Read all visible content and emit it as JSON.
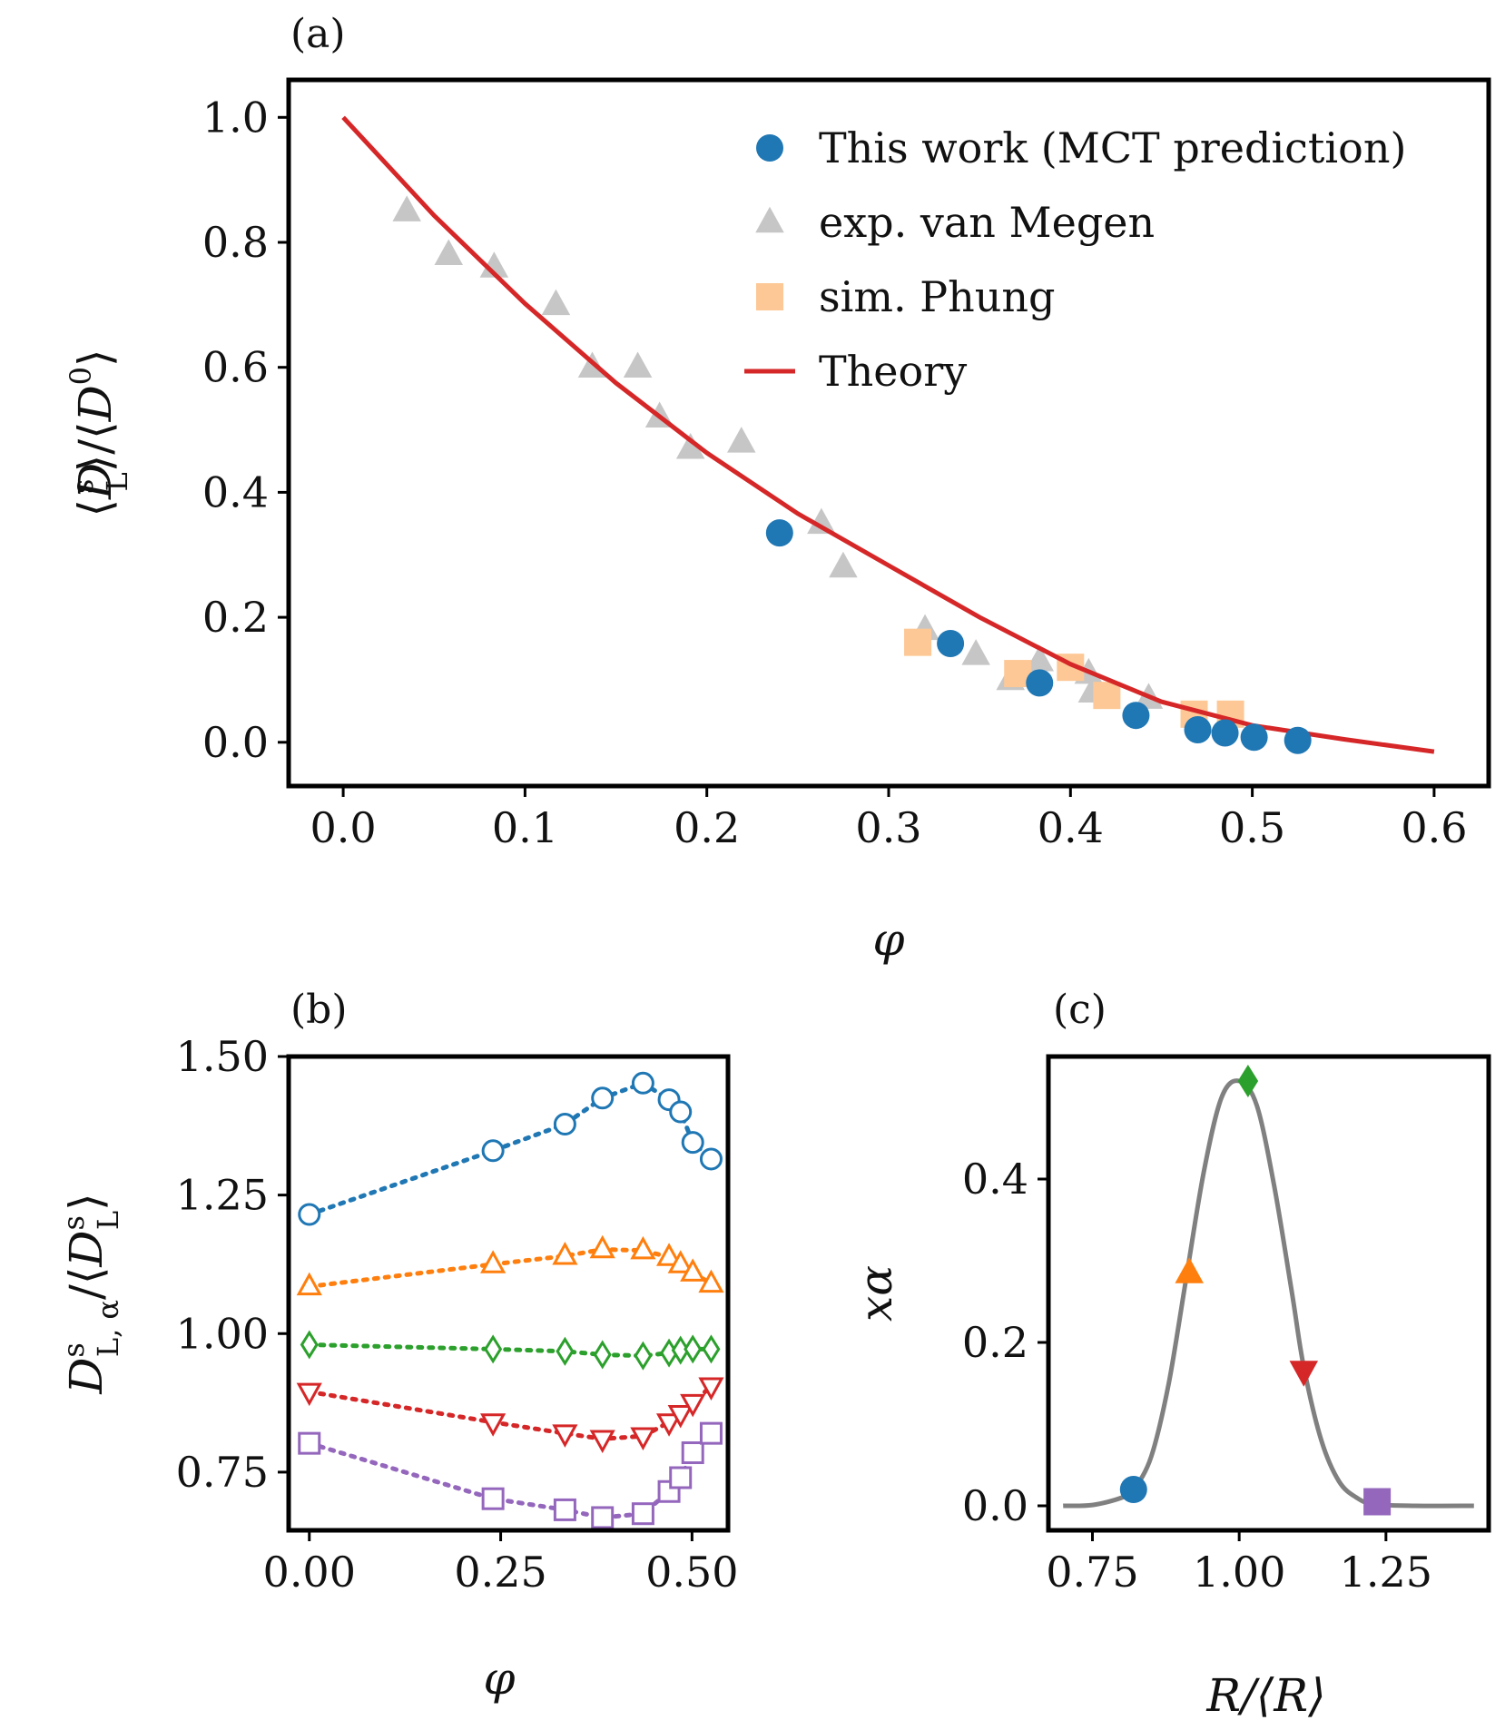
{
  "chart_data": [
    {
      "panel": "(a)",
      "type": "scatter",
      "xlabel": "φ",
      "ylabel_parts": {
        "open": "⟨",
        "sym": "D",
        "sup": "s",
        "sub": "L",
        "mid": "⟩/⟨",
        "sym2": "D",
        "sup2": "0",
        "close": "⟩"
      },
      "xlim": [
        -0.03,
        0.63
      ],
      "ylim": [
        -0.07,
        1.06
      ],
      "xticks": [
        "0.0",
        "0.1",
        "0.2",
        "0.3",
        "0.4",
        "0.5",
        "0.6"
      ],
      "yticks": [
        "0.0",
        "0.2",
        "0.4",
        "0.6",
        "0.8",
        "1.0"
      ],
      "legend_position": "top-right",
      "series": [
        {
          "name": "exp.  van Megen",
          "marker": "triangle",
          "color": "#c6c6c6",
          "points": [
            [
              0.035,
              0.85
            ],
            [
              0.058,
              0.78
            ],
            [
              0.083,
              0.76
            ],
            [
              0.117,
              0.7
            ],
            [
              0.137,
              0.6
            ],
            [
              0.162,
              0.6
            ],
            [
              0.174,
              0.52
            ],
            [
              0.191,
              0.47
            ],
            [
              0.219,
              0.48
            ],
            [
              0.263,
              0.35
            ],
            [
              0.275,
              0.28
            ],
            [
              0.32,
              0.18
            ],
            [
              0.348,
              0.14
            ],
            [
              0.367,
              0.1
            ],
            [
              0.383,
              0.13
            ],
            [
              0.41,
              0.11
            ],
            [
              0.412,
              0.08
            ],
            [
              0.443,
              0.07
            ]
          ]
        },
        {
          "name": "sim.  Phung",
          "marker": "square",
          "color": "#fdc895",
          "points": [
            [
              0.316,
              0.16
            ],
            [
              0.371,
              0.11
            ],
            [
              0.4,
              0.12
            ],
            [
              0.42,
              0.075
            ],
            [
              0.468,
              0.045
            ],
            [
              0.488,
              0.045
            ]
          ]
        },
        {
          "name": "Theory",
          "marker": "line",
          "color": "#d62728",
          "points": [
            [
              0.0,
              1.0
            ],
            [
              0.05,
              0.843
            ],
            [
              0.1,
              0.702
            ],
            [
              0.15,
              0.575
            ],
            [
              0.2,
              0.463
            ],
            [
              0.25,
              0.366
            ],
            [
              0.3,
              0.283
            ],
            [
              0.35,
              0.2
            ],
            [
              0.4,
              0.125
            ],
            [
              0.45,
              0.065
            ],
            [
              0.5,
              0.027
            ],
            [
              0.55,
              0.005
            ],
            [
              0.6,
              -0.015
            ]
          ]
        },
        {
          "name": "This work (MCT prediction)",
          "marker": "circle",
          "color": "#1f77b4",
          "points": [
            [
              0.24,
              0.335
            ],
            [
              0.334,
              0.158
            ],
            [
              0.383,
              0.095
            ],
            [
              0.436,
              0.043
            ],
            [
              0.47,
              0.02
            ],
            [
              0.485,
              0.015
            ],
            [
              0.501,
              0.008
            ],
            [
              0.525,
              0.003
            ]
          ]
        }
      ],
      "legend_order": [
        3,
        0,
        1,
        2
      ]
    },
    {
      "panel": "(b)",
      "type": "line",
      "xlabel": "φ",
      "ylabel_parts": {
        "sym": "D",
        "sup": "s",
        "sub": "L, α",
        "mid": "/⟨",
        "sym2": "D",
        "sup2": "s",
        "sub2": "L",
        "close": "⟩"
      },
      "xlim": [
        -0.027,
        0.547
      ],
      "ylim": [
        0.645,
        1.5
      ],
      "xticks": [
        "0.00",
        "0.25",
        "0.50"
      ],
      "yticks": [
        "0.75",
        "1.00",
        "1.25",
        "1.50"
      ],
      "x": [
        0.0,
        0.24,
        0.334,
        0.383,
        0.436,
        0.47,
        0.485,
        0.501,
        0.525
      ],
      "series": [
        {
          "marker": "circle",
          "color": "#1f77b4",
          "values": [
            1.215,
            1.33,
            1.378,
            1.425,
            1.452,
            1.422,
            1.4,
            1.345,
            1.315
          ]
        },
        {
          "marker": "triangle-up",
          "color": "#ff7f0e",
          "values": [
            1.085,
            1.125,
            1.14,
            1.152,
            1.15,
            1.138,
            1.125,
            1.11,
            1.09
          ]
        },
        {
          "marker": "diamond",
          "color": "#2ca02c",
          "values": [
            0.98,
            0.972,
            0.968,
            0.962,
            0.96,
            0.965,
            0.97,
            0.972,
            0.972
          ]
        },
        {
          "marker": "triangle-down",
          "color": "#d62728",
          "values": [
            0.895,
            0.84,
            0.82,
            0.81,
            0.815,
            0.84,
            0.855,
            0.875,
            0.905
          ]
        },
        {
          "marker": "square",
          "color": "#9467bd",
          "values": [
            0.802,
            0.702,
            0.682,
            0.668,
            0.675,
            0.715,
            0.74,
            0.785,
            0.82
          ]
        }
      ]
    },
    {
      "panel": "(c)",
      "type": "line",
      "xlabel": "R/⟨R⟩",
      "ylabel": "xα",
      "xlim": [
        0.675,
        1.425
      ],
      "ylim": [
        -0.03,
        0.55
      ],
      "xticks": [
        "0.75",
        "1.00",
        "1.25"
      ],
      "yticks": [
        "0.0",
        "0.2",
        "0.4"
      ],
      "curve": {
        "color": "#808080",
        "points": [
          [
            0.7,
            0.0
          ],
          [
            0.75,
            0.001
          ],
          [
            0.8,
            0.01
          ],
          [
            0.82,
            0.02
          ],
          [
            0.85,
            0.06
          ],
          [
            0.88,
            0.15
          ],
          [
            0.91,
            0.28
          ],
          [
            0.94,
            0.41
          ],
          [
            0.97,
            0.5
          ],
          [
            1.0,
            0.52
          ],
          [
            1.03,
            0.49
          ],
          [
            1.06,
            0.39
          ],
          [
            1.09,
            0.26
          ],
          [
            1.11,
            0.17
          ],
          [
            1.14,
            0.08
          ],
          [
            1.17,
            0.03
          ],
          [
            1.2,
            0.01
          ],
          [
            1.23,
            0.002
          ],
          [
            1.3,
            0.0
          ],
          [
            1.4,
            0.0
          ]
        ]
      },
      "markers": [
        {
          "marker": "circle",
          "color": "#1f77b4",
          "x": 0.82,
          "y": 0.02
        },
        {
          "marker": "triangle-up",
          "color": "#ff7f0e",
          "x": 0.915,
          "y": 0.285
        },
        {
          "marker": "diamond",
          "color": "#2ca02c",
          "x": 1.015,
          "y": 0.52
        },
        {
          "marker": "triangle-down",
          "color": "#d62728",
          "x": 1.11,
          "y": 0.165
        },
        {
          "marker": "square",
          "color": "#9467bd",
          "x": 1.235,
          "y": 0.005
        }
      ]
    }
  ]
}
